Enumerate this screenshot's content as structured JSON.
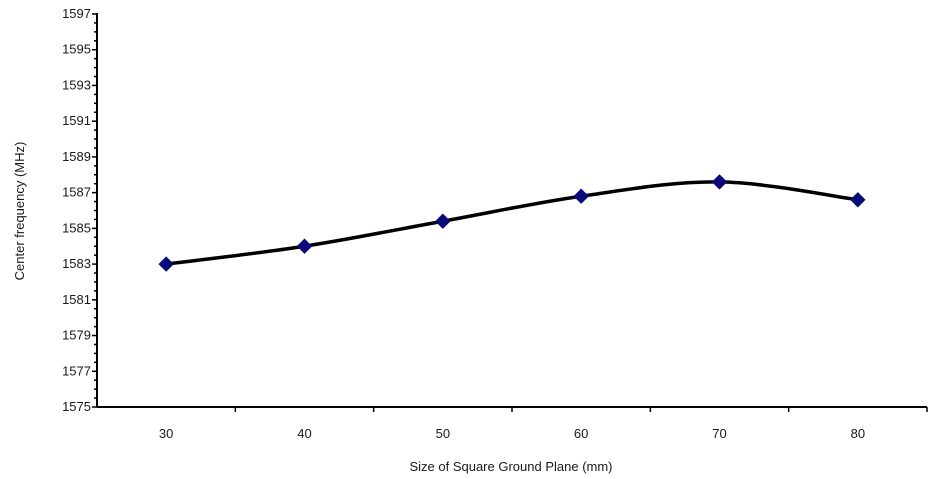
{
  "chart_data": {
    "type": "line",
    "title": "",
    "xlabel": "Size of Square Ground Plane (mm)",
    "ylabel": "Center frequency (MHz)",
    "xlim": [
      25,
      85
    ],
    "ylim": [
      1575,
      1597
    ],
    "x_ticks": [
      "30",
      "40",
      "50",
      "60",
      "70",
      "80"
    ],
    "y_ticks": [
      "1575",
      "1577",
      "1579",
      "1581",
      "1583",
      "1585",
      "1587",
      "1589",
      "1591",
      "1593",
      "1595",
      "1597"
    ],
    "grid": false,
    "legend": "none",
    "smooth": true,
    "series": [
      {
        "x": [
          30,
          40,
          50,
          60,
          70,
          80
        ],
        "values": [
          1583.0,
          1584.0,
          1585.4,
          1586.8,
          1587.6,
          1586.6
        ],
        "line_color": "#000000",
        "marker": "diamond",
        "marker_color": "#0a0a78"
      }
    ]
  }
}
